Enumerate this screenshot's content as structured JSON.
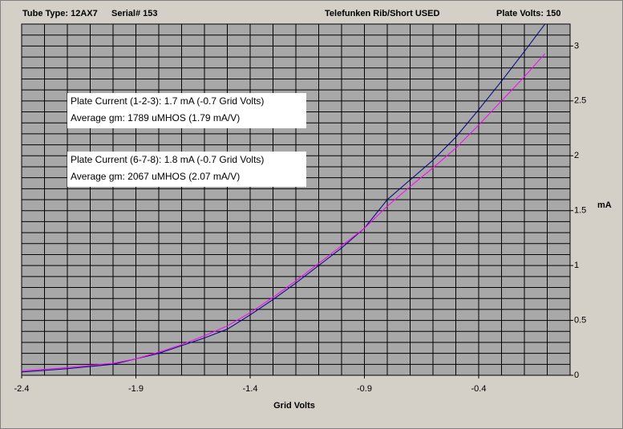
{
  "chart_data": {
    "type": "line",
    "header": [
      "Tube Type: 12AX7",
      "Serial# 153",
      "Telefunken Rib/Short USED",
      "Plate Volts: 150"
    ],
    "xlabel": "Grid Volts",
    "ylabel": "mA",
    "annotations": [
      [
        "Plate Current (1-2-3):  1.7 mA   (-0.7 Grid Volts)",
        "Average gm:  1789 uMHOS   (1.79 mA/V)"
      ],
      [
        "Plate Current (6-7-8):  1.8 mA   (-0.7 Grid Volts)",
        "Average gm:  2067 uMHOS   (2.07 mA/V)"
      ]
    ],
    "x": [
      -2.4,
      -2.3,
      -2.2,
      -2.1,
      -2.0,
      -1.9,
      -1.8,
      -1.7,
      -1.6,
      -1.5,
      -1.4,
      -1.3,
      -1.2,
      -1.1,
      -1.0,
      -0.9,
      -0.8,
      -0.7,
      -0.6,
      -0.5,
      -0.4,
      -0.3,
      -0.2,
      -0.11
    ],
    "series": [
      {
        "color": "#000080",
        "values": [
          0.03,
          0.045,
          0.06,
          0.08,
          0.1,
          0.15,
          0.2,
          0.27,
          0.34,
          0.42,
          0.55,
          0.69,
          0.84,
          1.0,
          1.16,
          1.34,
          1.6,
          1.78,
          1.96,
          2.17,
          2.42,
          2.68,
          2.95,
          3.2
        ]
      },
      {
        "color": "#ff00ff",
        "values": [
          0.04,
          0.055,
          0.07,
          0.09,
          0.11,
          0.15,
          0.21,
          0.28,
          0.36,
          0.45,
          0.57,
          0.71,
          0.86,
          1.02,
          1.18,
          1.34,
          1.54,
          1.72,
          1.89,
          2.07,
          2.28,
          2.5,
          2.72,
          2.93
        ]
      }
    ],
    "xlim": [
      -2.4,
      0
    ],
    "ylim": [
      0,
      3.2
    ],
    "xticks": [
      -2.4,
      -1.9,
      -1.4,
      -0.9,
      -0.4
    ],
    "yticks": [
      0,
      0.5,
      1,
      1.5,
      2,
      2.5,
      3
    ],
    "grid": true,
    "x_grid_step": 0.1,
    "y_grid_step": 0.1,
    "plot_color": "#a8a8a8"
  }
}
